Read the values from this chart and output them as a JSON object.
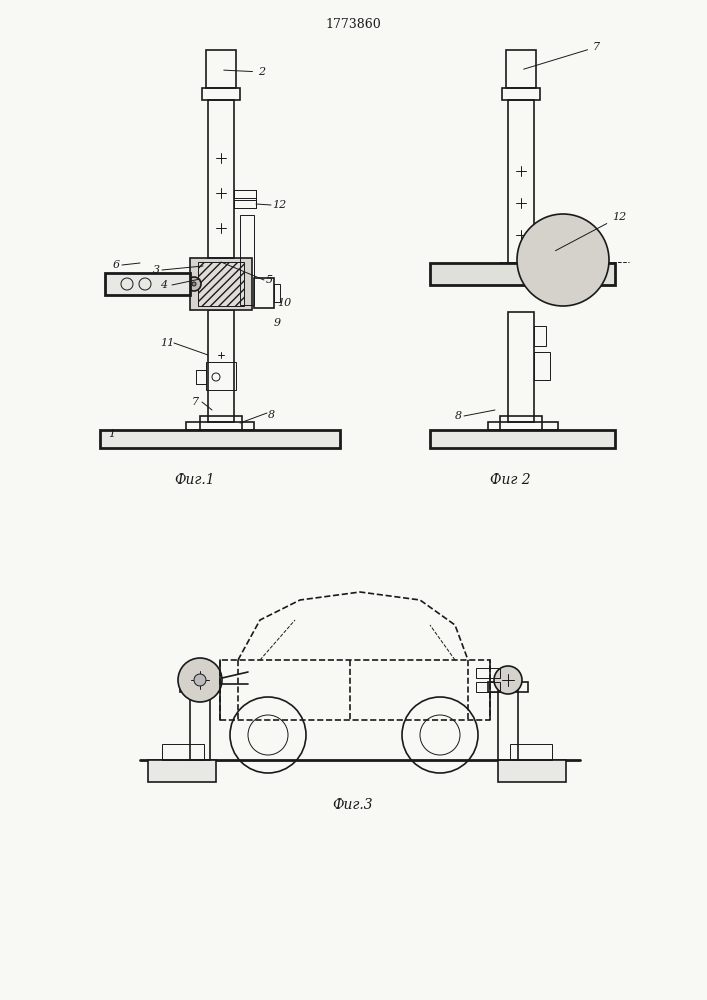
{
  "title": "1773860",
  "bg_color": "#f8f8f5",
  "line_color": "#1a1a1a",
  "fig1_caption": "Фиг.1",
  "fig2_caption": "Фиг 2",
  "fig3_caption": "Фиг.3",
  "lw": 1.2,
  "lw_thin": 0.7,
  "lw_thick": 2.0
}
